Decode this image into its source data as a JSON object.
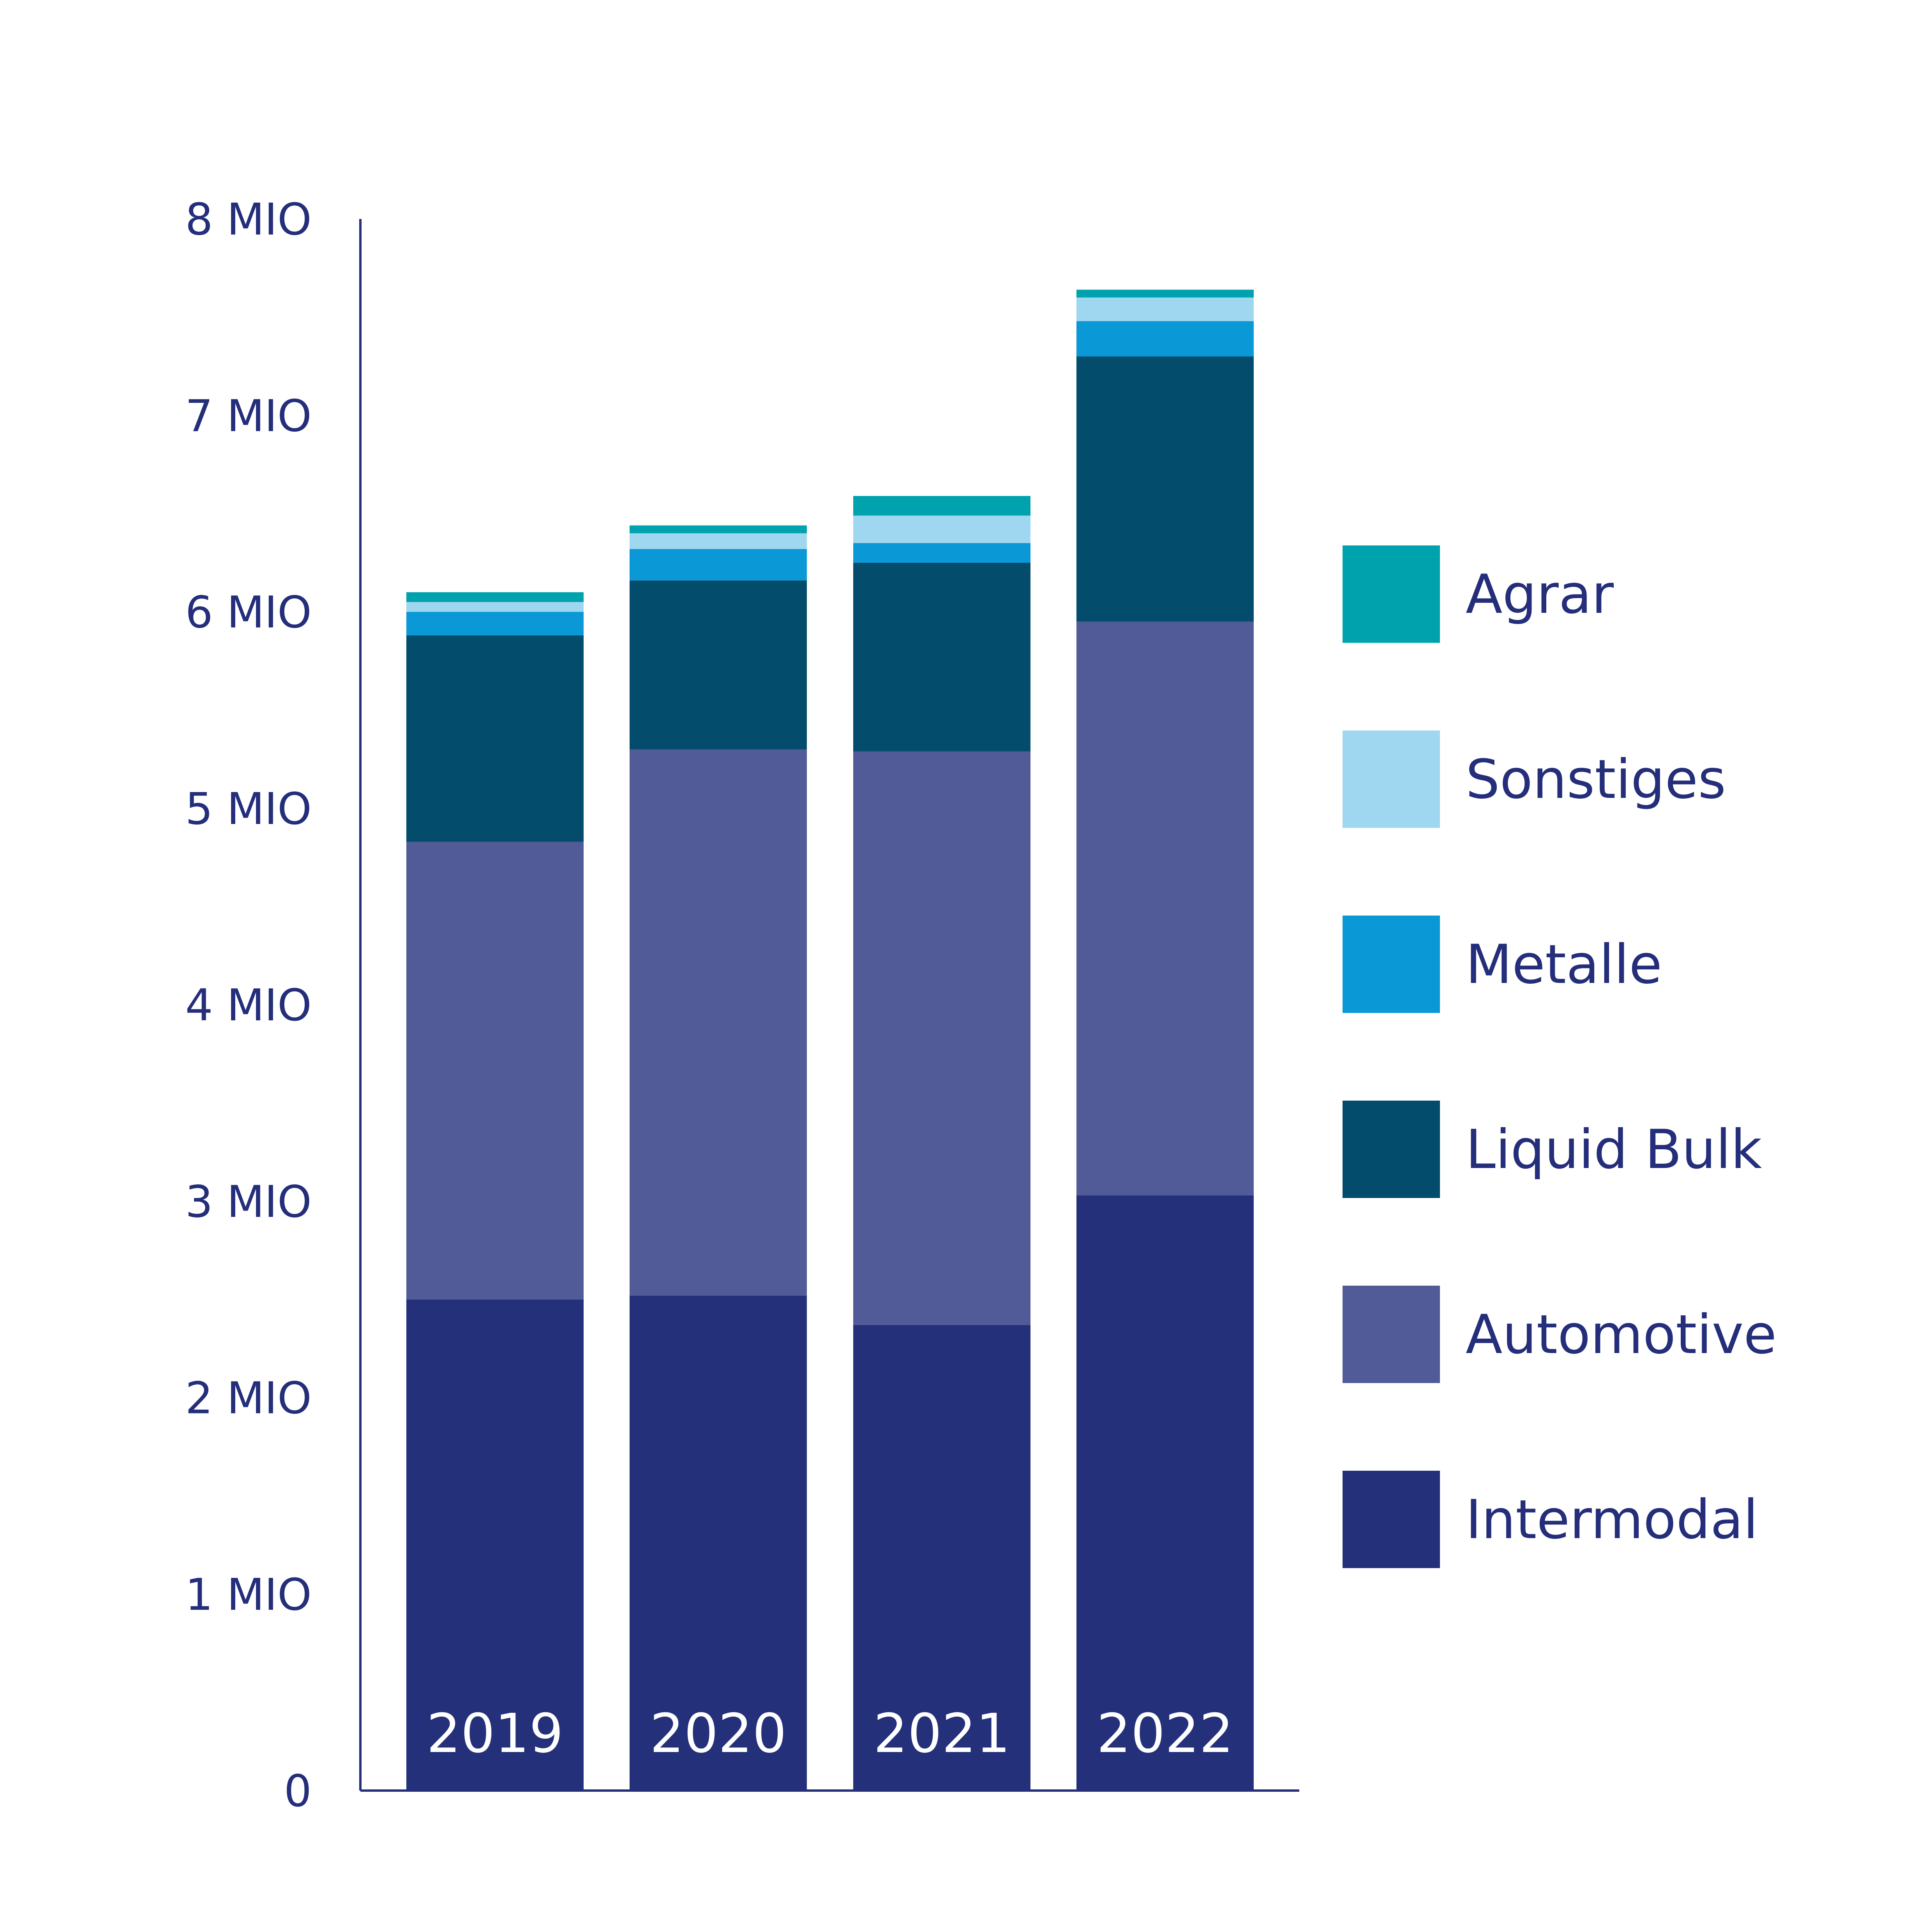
{
  "chart_data": {
    "type": "bar",
    "stacked": true,
    "categories": [
      "2019",
      "2020",
      "2021",
      "2022"
    ],
    "series": [
      {
        "name": "Intermodal",
        "color": "#24317a",
        "values": [
          2.5,
          2.52,
          2.37,
          3.03
        ]
      },
      {
        "name": "Automotive",
        "color": "#505b97",
        "values": [
          2.33,
          2.78,
          2.92,
          2.92
        ]
      },
      {
        "name": "Liquid Bulk",
        "color": "#034c6b",
        "values": [
          1.05,
          0.86,
          0.96,
          1.35
        ]
      },
      {
        "name": "Metalle",
        "color": "#0a98d6",
        "values": [
          0.12,
          0.16,
          0.1,
          0.18
        ]
      },
      {
        "name": "Sonstiges",
        "color": "#9fd7f0",
        "values": [
          0.05,
          0.08,
          0.14,
          0.12
        ]
      },
      {
        "name": "Agrar",
        "color": "#00a3ad",
        "values": [
          0.05,
          0.04,
          0.1,
          0.04
        ]
      }
    ],
    "y_ticks": [
      {
        "value": 0,
        "label": "0"
      },
      {
        "value": 1,
        "label": "1 MIO"
      },
      {
        "value": 2,
        "label": "2 MIO"
      },
      {
        "value": 3,
        "label": "3 MIO"
      },
      {
        "value": 4,
        "label": "4 MIO"
      },
      {
        "value": 5,
        "label": "5 MIO"
      },
      {
        "value": 6,
        "label": "6 MIO"
      },
      {
        "value": 7,
        "label": "7 MIO"
      },
      {
        "value": 8,
        "label": "8 MIO"
      }
    ],
    "ylim": [
      0,
      8
    ],
    "legend": {
      "position": "right",
      "order": [
        "Agrar",
        "Sonstiges",
        "Metalle",
        "Liquid Bulk",
        "Automotive",
        "Intermodal"
      ]
    },
    "colors": {
      "axis": "#242e7a",
      "category_label": "#ffffff",
      "text": "#242e7a"
    },
    "grid": false
  }
}
